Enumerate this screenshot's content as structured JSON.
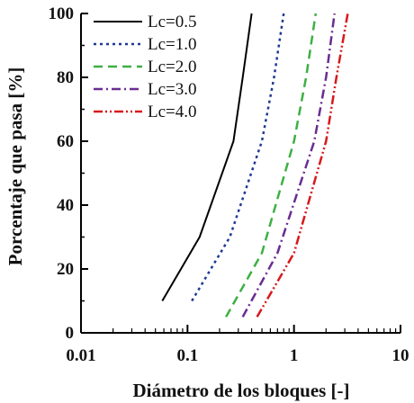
{
  "chart_data": {
    "type": "line",
    "title": "",
    "xlabel": "Diámetro de los bloques [-]",
    "ylabel": "Porcentaje que pasa [%]",
    "xscale": "log",
    "xlim": [
      0.01,
      10
    ],
    "ylim": [
      0,
      100
    ],
    "xticks": [
      "0.01",
      "0.1",
      "1",
      "10"
    ],
    "yticks": [
      "0",
      "20",
      "40",
      "60",
      "80",
      "100"
    ],
    "grid": false,
    "legend_position": "top-left",
    "series": [
      {
        "name": "Lc=0.5",
        "color": "#000000",
        "dash": "solid",
        "points": [
          [
            0.058,
            10
          ],
          [
            0.13,
            30
          ],
          [
            0.27,
            60
          ],
          [
            0.33,
            80
          ],
          [
            0.4,
            100
          ]
        ]
      },
      {
        "name": "Lc=1.0",
        "color": "#1f3a93",
        "dash": "dotted",
        "points": [
          [
            0.11,
            10
          ],
          [
            0.25,
            30
          ],
          [
            0.5,
            60
          ],
          [
            0.65,
            80
          ],
          [
            0.8,
            100
          ]
        ]
      },
      {
        "name": "Lc=2.0",
        "color": "#3cb043",
        "dash": "dashed",
        "points": [
          [
            0.23,
            5
          ],
          [
            0.5,
            25
          ],
          [
            1.0,
            60
          ],
          [
            1.3,
            80
          ],
          [
            1.6,
            100
          ]
        ]
      },
      {
        "name": "Lc=3.0",
        "color": "#6a2c91",
        "dash": "dashdot",
        "points": [
          [
            0.33,
            5
          ],
          [
            0.7,
            25
          ],
          [
            1.55,
            60
          ],
          [
            2.0,
            80
          ],
          [
            2.4,
            100
          ]
        ]
      },
      {
        "name": "Lc=4.0",
        "color": "#d7191c",
        "dash": "dashdotdot",
        "points": [
          [
            0.45,
            5
          ],
          [
            1.0,
            25
          ],
          [
            2.0,
            60
          ],
          [
            2.5,
            80
          ],
          [
            3.2,
            100
          ]
        ]
      }
    ]
  }
}
